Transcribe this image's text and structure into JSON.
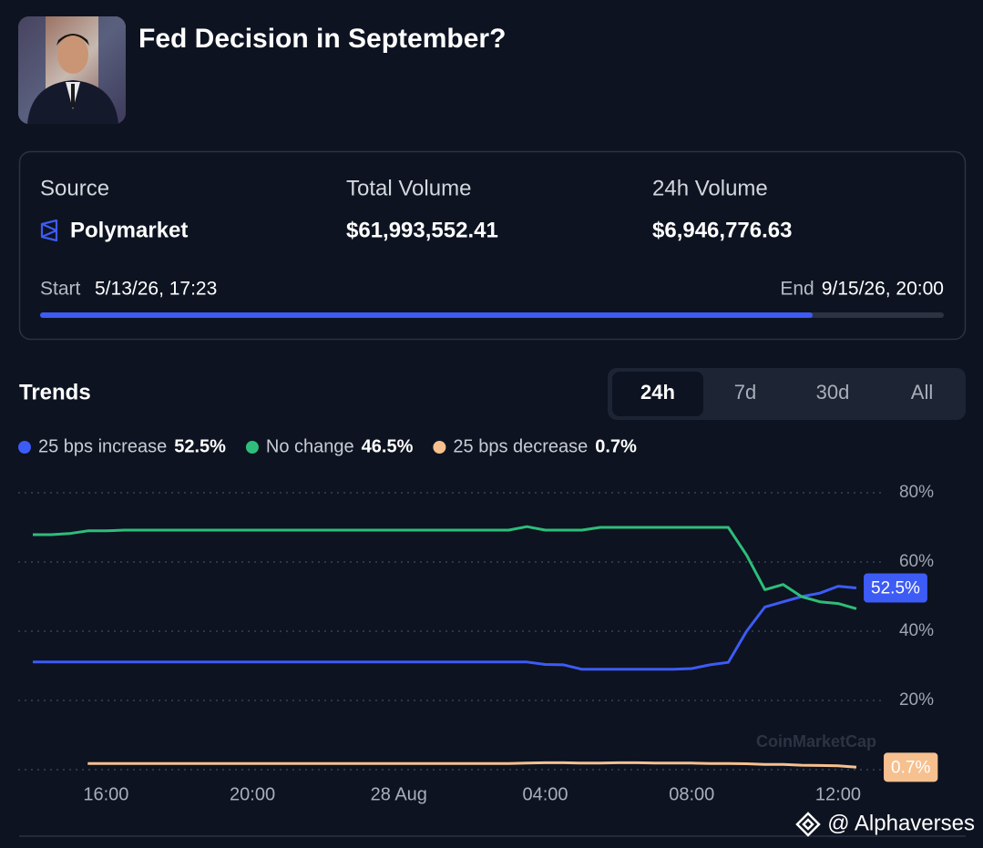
{
  "header": {
    "title": "Fed Decision in September?"
  },
  "stats": [
    {
      "label": "Source",
      "value": "Polymarket"
    },
    {
      "label": "Total Volume",
      "value": "$61,993,552.41"
    },
    {
      "label": "24h Volume",
      "value": "$6,946,776.63"
    }
  ],
  "schedule": {
    "start_label": "Start",
    "start": "5/13/26, 17:23",
    "end_label": "End",
    "end": "9/15/26, 20:00"
  },
  "trends": {
    "title": "Trends",
    "tabs": [
      "24h",
      "7d",
      "30d",
      "All"
    ]
  },
  "chart_data": {
    "type": "line",
    "watermark": "CoinMarketCap",
    "categories": [
      null,
      null,
      null,
      null,
      "16:00",
      null,
      null,
      null,
      null,
      null,
      null,
      null,
      "20:00",
      null,
      null,
      null,
      null,
      null,
      null,
      null,
      "28 Aug",
      null,
      null,
      null,
      null,
      null,
      null,
      null,
      "04:00",
      null,
      null,
      null,
      null,
      null,
      null,
      null,
      "08:00",
      null,
      null,
      null,
      null,
      null,
      null,
      null,
      "12:00",
      null
    ],
    "series": [
      {
        "name": "25 bps increase",
        "color": "#3d5bf5",
        "last_label": "52.5%",
        "show_tag": true,
        "values": [
          31.1,
          31.1,
          31.1,
          31.1,
          31.1,
          31.1,
          31.1,
          31.1,
          31.1,
          31.1,
          31.1,
          31.1,
          31.1,
          31.1,
          31.1,
          31.1,
          31.1,
          31.1,
          31.1,
          31.1,
          31.1,
          31.1,
          31.1,
          31.1,
          31.1,
          31.1,
          31.1,
          31.1,
          30.4,
          30.3,
          29,
          29,
          29,
          29,
          29,
          29,
          29.2,
          30.3,
          31,
          40,
          47,
          48.5,
          50,
          51,
          53,
          52.5
        ]
      },
      {
        "name": "No change",
        "color": "#2ebd7a",
        "last_label": "46.5%",
        "show_tag": false,
        "values": [
          67.9,
          67.9,
          68.2,
          69,
          69,
          69.2,
          69.2,
          69.2,
          69.2,
          69.2,
          69.2,
          69.2,
          69.2,
          69.2,
          69.2,
          69.2,
          69.2,
          69.2,
          69.2,
          69.2,
          69.2,
          69.2,
          69.2,
          69.2,
          69.2,
          69.2,
          69.2,
          70.2,
          69.2,
          69.2,
          69.2,
          70,
          70,
          70,
          70,
          70,
          70,
          70,
          70,
          62,
          52,
          53.5,
          50,
          48.5,
          48,
          46.5
        ]
      },
      {
        "name": "25 bps decrease",
        "color": "#f6c08f",
        "last_label": "0.7%",
        "show_tag": true,
        "values": [
          null,
          null,
          null,
          1.8,
          1.8,
          1.8,
          1.8,
          1.8,
          1.8,
          1.8,
          1.8,
          1.8,
          1.8,
          1.8,
          1.8,
          1.8,
          1.8,
          1.8,
          1.8,
          1.8,
          1.8,
          1.8,
          1.8,
          1.8,
          1.8,
          1.8,
          1.8,
          1.9,
          2,
          2,
          1.9,
          1.9,
          2,
          2,
          1.9,
          1.9,
          1.9,
          1.8,
          1.8,
          1.7,
          1.5,
          1.5,
          1.3,
          1.2,
          1.1,
          0.7
        ]
      }
    ],
    "ylim": [
      0,
      85
    ],
    "yticks": [
      {
        "value": 20,
        "label": "20%"
      },
      {
        "value": 40,
        "label": "40%"
      },
      {
        "value": 60,
        "label": "60%"
      },
      {
        "value": 80,
        "label": "80%"
      }
    ],
    "grid": true
  },
  "footer": {
    "watermark": "@ Alphaverses"
  }
}
